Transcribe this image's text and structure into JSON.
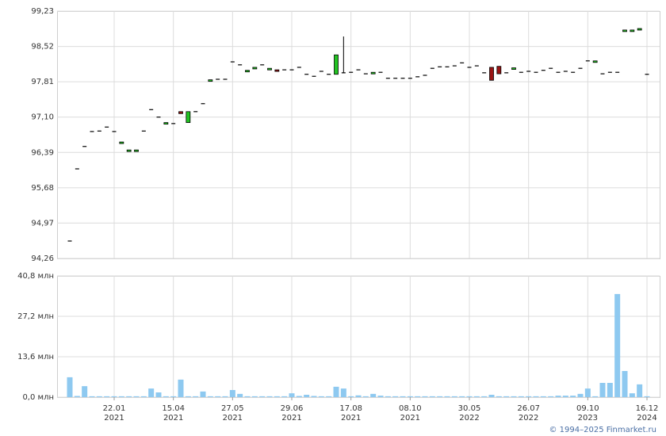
{
  "chart_data": {
    "type": "candlestick",
    "credit": "© 1994–2025 Finmarket.ru",
    "categories": [
      null,
      null,
      null,
      null,
      null,
      null,
      {
        "date": "22.01",
        "year": "2021"
      },
      null,
      null,
      null,
      null,
      null,
      null,
      null,
      {
        "date": "15.04",
        "year": "2021"
      },
      null,
      null,
      null,
      null,
      null,
      null,
      null,
      {
        "date": "27.05",
        "year": "2021"
      },
      null,
      null,
      null,
      null,
      null,
      null,
      null,
      {
        "date": "29.06",
        "year": "2021"
      },
      null,
      null,
      null,
      null,
      null,
      null,
      null,
      {
        "date": "17.08",
        "year": "2021"
      },
      null,
      null,
      null,
      null,
      null,
      null,
      null,
      {
        "date": "08.10",
        "year": "2021"
      },
      null,
      null,
      null,
      null,
      null,
      null,
      null,
      {
        "date": "30.05",
        "year": "2022"
      },
      null,
      null,
      null,
      null,
      null,
      null,
      null,
      {
        "date": "26.07",
        "year": "2022"
      },
      null,
      null,
      null,
      null,
      null,
      null,
      null,
      {
        "date": "09.10",
        "year": "2023"
      },
      null,
      null,
      null,
      null,
      null,
      null,
      null,
      {
        "date": "16.12",
        "year": "2024"
      }
    ],
    "open": [
      94.61,
      96.06,
      96.51,
      96.81,
      96.82,
      96.9,
      96.81,
      96.57,
      96.42,
      96.42,
      96.82,
      97.25,
      97.1,
      96.97,
      96.97,
      97.21,
      96.99,
      97.21,
      97.37,
      97.82,
      97.86,
      97.86,
      98.21,
      98.15,
      98.01,
      98.07,
      98.15,
      98.06,
      98.05,
      98.05,
      98.05,
      98.1,
      97.96,
      97.92,
      98.02,
      97.96,
      97.96,
      97.99,
      98.0,
      98.05,
      97.97,
      97.98,
      98.0,
      97.88,
      97.88,
      97.88,
      97.88,
      97.91,
      97.94,
      98.08,
      98.11,
      98.11,
      98.13,
      98.19,
      98.1,
      98.13,
      97.99,
      98.1,
      98.12,
      97.99,
      98.06,
      98.0,
      98.02,
      98.0,
      98.04,
      98.08,
      98.0,
      98.02,
      98.0,
      98.08,
      98.23,
      98.2,
      97.97,
      98.0,
      98.0,
      98.82,
      98.82,
      98.85,
      97.96
    ],
    "high": [
      94.61,
      96.06,
      96.51,
      96.81,
      96.82,
      96.9,
      96.81,
      96.6,
      96.44,
      96.44,
      96.82,
      97.25,
      97.1,
      96.99,
      96.97,
      97.21,
      97.21,
      97.21,
      97.37,
      97.85,
      97.86,
      97.86,
      98.21,
      98.15,
      98.04,
      98.1,
      98.15,
      98.08,
      98.05,
      98.05,
      98.05,
      98.1,
      97.96,
      97.92,
      98.02,
      97.96,
      98.35,
      98.72,
      98.0,
      98.05,
      97.97,
      98.0,
      98.0,
      97.88,
      97.88,
      97.88,
      97.88,
      97.91,
      97.94,
      98.08,
      98.11,
      98.11,
      98.13,
      98.19,
      98.1,
      98.13,
      97.99,
      98.1,
      98.12,
      97.99,
      98.09,
      98.0,
      98.02,
      98.0,
      98.04,
      98.08,
      98.0,
      98.02,
      98.0,
      98.08,
      98.23,
      98.23,
      97.97,
      98.0,
      98.0,
      98.85,
      98.85,
      98.88,
      97.96
    ],
    "low": [
      94.61,
      96.06,
      96.51,
      96.81,
      96.82,
      96.9,
      96.81,
      96.57,
      96.42,
      96.42,
      96.82,
      97.25,
      97.1,
      96.97,
      96.97,
      97.17,
      96.99,
      97.21,
      97.37,
      97.82,
      97.86,
      97.86,
      98.21,
      98.15,
      98.01,
      98.07,
      98.15,
      98.06,
      98.02,
      98.05,
      98.05,
      98.1,
      97.96,
      97.92,
      98.02,
      97.96,
      97.96,
      97.99,
      98.0,
      98.05,
      97.97,
      97.98,
      98.0,
      97.88,
      97.88,
      97.88,
      97.88,
      97.91,
      97.94,
      98.08,
      98.11,
      98.11,
      98.13,
      98.19,
      98.1,
      98.13,
      97.99,
      97.84,
      97.97,
      97.99,
      98.06,
      98.0,
      98.02,
      98.0,
      98.04,
      98.08,
      98.0,
      98.02,
      98.0,
      98.08,
      98.23,
      98.2,
      97.97,
      98.0,
      98.0,
      98.82,
      98.82,
      98.85,
      97.96
    ],
    "close": [
      94.61,
      96.06,
      96.51,
      96.81,
      96.82,
      96.9,
      96.81,
      96.6,
      96.44,
      96.44,
      96.82,
      97.25,
      97.1,
      96.99,
      96.97,
      97.17,
      97.21,
      97.21,
      97.37,
      97.85,
      97.86,
      97.86,
      98.21,
      98.15,
      98.04,
      98.1,
      98.15,
      98.08,
      98.02,
      98.05,
      98.05,
      98.1,
      97.96,
      97.92,
      98.02,
      97.96,
      98.35,
      97.99,
      98.0,
      98.05,
      97.97,
      98.0,
      98.0,
      97.88,
      97.88,
      97.88,
      97.88,
      97.91,
      97.94,
      98.08,
      98.11,
      98.11,
      98.13,
      98.19,
      98.1,
      98.13,
      97.99,
      97.84,
      97.97,
      97.99,
      98.09,
      98.0,
      98.02,
      98.0,
      98.04,
      98.08,
      98.0,
      98.02,
      98.0,
      98.08,
      98.23,
      98.23,
      97.97,
      98.0,
      98.0,
      98.85,
      98.85,
      98.88,
      97.96
    ],
    "up_color": "#22c322",
    "down_color": "#9a1414",
    "flat_color": "#000000",
    "ylim": [
      94.26,
      99.23
    ],
    "yticks": [
      {
        "value": 94.26,
        "label": "94,26"
      },
      {
        "value": 94.97,
        "label": "94,97"
      },
      {
        "value": 95.68,
        "label": "95,68"
      },
      {
        "value": 96.39,
        "label": "96,39"
      },
      {
        "value": 97.1,
        "label": "97,10"
      },
      {
        "value": 97.81,
        "label": "97,81"
      },
      {
        "value": 98.52,
        "label": "98,52"
      },
      {
        "value": 99.23,
        "label": "99,23"
      }
    ],
    "grid": true,
    "volume": {
      "type": "bar",
      "color": "#8ec9f0",
      "values": [
        6.7,
        0.4,
        3.7,
        0.3,
        0.3,
        0.3,
        0.3,
        0.3,
        0.3,
        0.3,
        0.3,
        2.9,
        1.6,
        0.3,
        0.3,
        5.9,
        0.3,
        0.3,
        1.9,
        0.3,
        0.3,
        0.3,
        2.4,
        1.1,
        0.3,
        0.3,
        0.3,
        0.3,
        0.3,
        0.3,
        1.3,
        0.4,
        0.8,
        0.4,
        0.3,
        0.3,
        3.5,
        2.9,
        0.3,
        0.6,
        0.3,
        1.1,
        0.5,
        0.3,
        0.3,
        0.3,
        0.3,
        0.3,
        0.3,
        0.3,
        0.3,
        0.3,
        0.3,
        0.3,
        0.3,
        0.3,
        0.3,
        0.8,
        0.3,
        0.3,
        0.3,
        0.3,
        0.3,
        0.3,
        0.3,
        0.3,
        0.5,
        0.5,
        0.5,
        1.1,
        2.9,
        0.3,
        4.8,
        4.8,
        34.7,
        8.8,
        1.3,
        4.3,
        0.3
      ],
      "ylim": [
        0,
        40.8
      ],
      "yticks": [
        {
          "value": 0,
          "label": "0,0 млн"
        },
        {
          "value": 13.6,
          "label": "13,6 млн"
        },
        {
          "value": 27.2,
          "label": "27,2 млн"
        },
        {
          "value": 40.8,
          "label": "40,8 млн"
        }
      ]
    }
  }
}
